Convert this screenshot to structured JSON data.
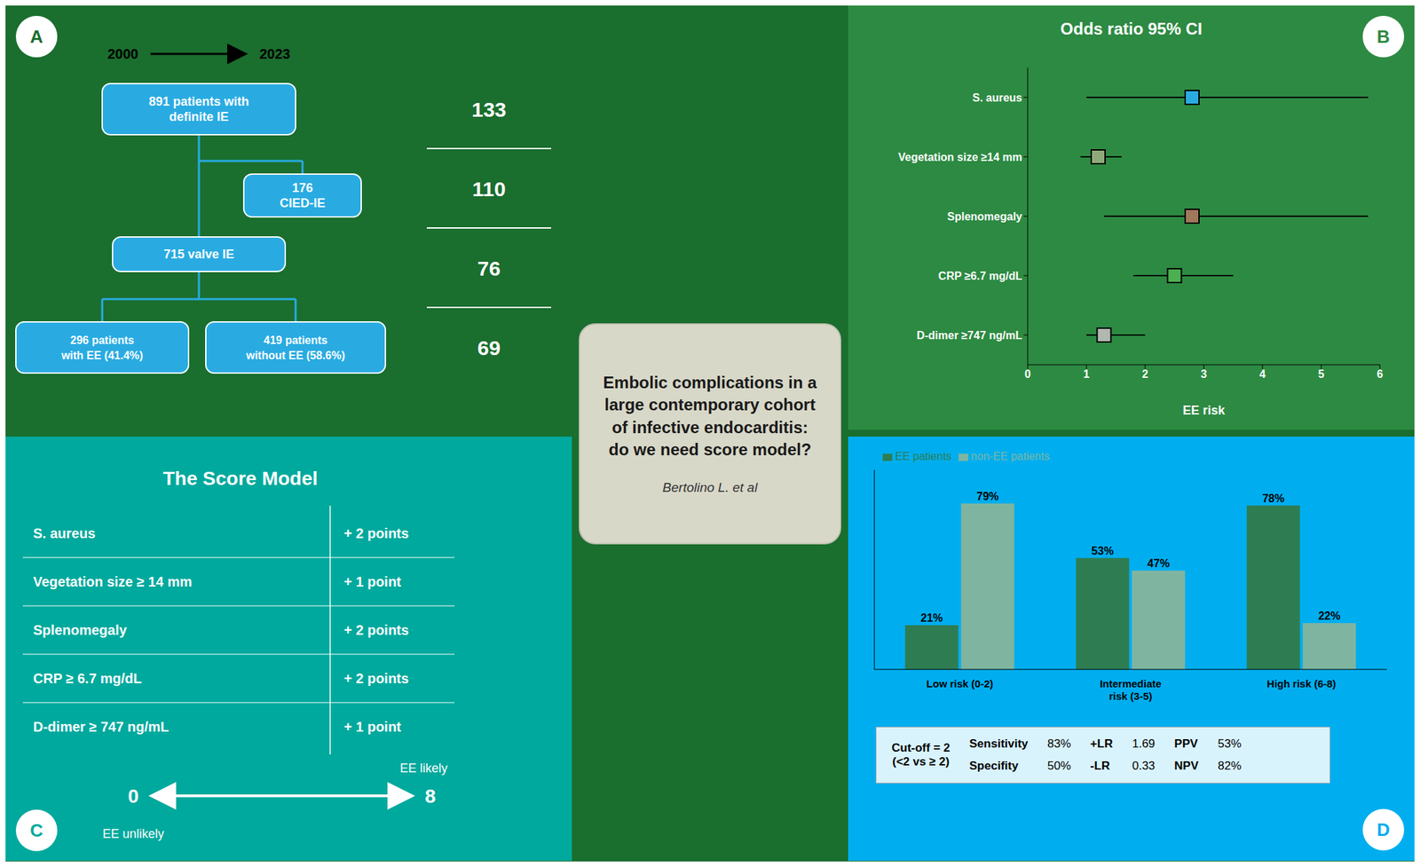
{
  "title": "Embolic complications in a\nlarge contemporary cohort\nof infective endocarditis:\ndo we need score model?",
  "subtitle": "Bertolino L. et al",
  "color": "#1a6e2e",
  "chart_data": [
    {
      "type": "flowchart",
      "label": "A",
      "color": "#29abe2",
      "annotations": [
        "2000",
        "2023"
      ],
      "boxes": [
        "891 patients with\ndefinite IE",
        "176\nCIED-IE",
        "715 valve IE",
        "296 patients\nwith EE (41.4%)",
        "419 patients\nwithout EE (58.6%)"
      ],
      "organ_numbers": [
        133,
        110,
        76,
        69
      ]
    },
    {
      "type": "forest",
      "label": "B",
      "color": "#2d8a42",
      "title": "Odds ratio 95% CI",
      "categories": [
        "S. aureus",
        "Vegetation size ≥14 mm",
        "Splenomegaly",
        "CRP ≥6.7 mg/dL",
        "D-dimer ≥747 ng/mL"
      ],
      "colors": [
        "#29abe2",
        "#8faa7a",
        "#a0785a",
        "#4caf50",
        "#b0b8b0"
      ],
      "values": [
        2.8,
        1.2,
        2.8,
        2.5,
        1.3
      ],
      "ci_low": [
        1.0,
        0.9,
        1.3,
        1.8,
        1.0
      ],
      "ci_high": [
        5.8,
        1.6,
        5.8,
        3.5,
        2.0
      ],
      "xlim": [
        0,
        6
      ],
      "xticks": [
        0,
        1,
        2,
        3,
        4,
        5,
        6
      ],
      "xlabel": "EE risk"
    },
    {
      "type": "table",
      "label": "C",
      "color": "#00a99d",
      "title": "The Score Model",
      "rows": [
        [
          "S. aureus",
          "+ 2 points"
        ],
        [
          "Vegetation size ≥ 14 mm",
          "+ 1 point"
        ],
        [
          "Splenomegaly",
          "+ 2 points"
        ],
        [
          "CRP ≥ 6.7 mg/dL",
          "+ 2 points"
        ],
        [
          "D-dimer ≥ 747 ng/mL",
          "+ 1 point"
        ]
      ],
      "annotations": [
        "0",
        "8",
        "EE likely",
        "EE unlikely"
      ]
    },
    {
      "type": "bar",
      "label": "D",
      "color": "#00aeef",
      "categories": [
        "Low risk (0-2)",
        "Intermediate\nrisk (3-5)",
        "High risk (6-8)"
      ],
      "series": [
        {
          "name": "EE patients",
          "color": "#2e7d52",
          "values": [
            21,
            53,
            78
          ],
          "value_labels": [
            "21%",
            "53%",
            "78%"
          ]
        },
        {
          "name": "non-EE patients",
          "color": "#7fb5a0",
          "values": [
            79,
            47,
            22
          ],
          "value_labels": [
            "79%",
            "47%",
            "22%"
          ]
        }
      ],
      "ylim": [
        0,
        95
      ],
      "tick_labels": "x",
      "data_labels": true,
      "legend": "upper left",
      "stats": {
        "title": "Cut-off = 2\n(<2 vs ≥ 2)",
        "rows": [
          [
            "Sensitivity",
            "83%",
            "+LR",
            "1.69",
            "PPV",
            "53%"
          ],
          [
            "Specifity",
            "50%",
            "-LR",
            "0.33",
            "NPV",
            "82%"
          ]
        ]
      }
    }
  ]
}
